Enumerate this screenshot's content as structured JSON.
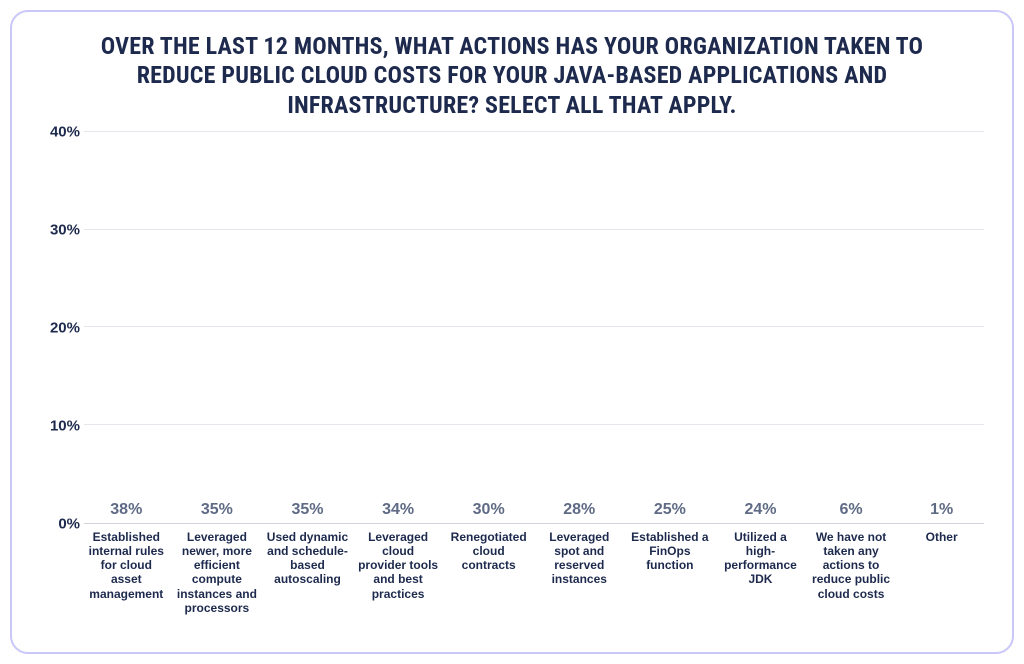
{
  "chart": {
    "type": "bar",
    "title": "OVER THE LAST 12 MONTHS, WHAT ACTIONS HAS YOUR ORGANIZATION TAKEN TO REDUCE PUBLIC CLOUD COSTS FOR YOUR JAVA-BASED APPLICATIONS AND INFRASTRUCTURE? SELECT ALL THAT APPLY.",
    "title_fontsize": 24,
    "title_color": "#1d2a4d",
    "background_color": "#ffffff",
    "border_color": "#c9c7f5",
    "border_radius": 18,
    "y_axis": {
      "min": 0,
      "max": 40,
      "tick_step": 10,
      "ticks": [
        "0%",
        "10%",
        "20%",
        "30%",
        "40%"
      ],
      "label_fontsize": 15,
      "label_color": "#1d2a4d"
    },
    "grid_color": "#e6e6ec",
    "axis_line_color": "#d3d3dc",
    "bar_color": "#5a5fd6",
    "bar_width": 0.88,
    "value_label_color": "#5f6b85",
    "value_label_fontsize": 16,
    "x_label_color": "#1d2a4d",
    "x_label_fontsize": 12,
    "categories": [
      "Established internal rules for cloud asset management",
      "Leveraged newer, more efficient compute instances and processors",
      "Used dynamic and schedule-based autoscaling",
      "Leveraged cloud provider tools and best practices",
      "Renegotiated cloud contracts",
      "Leveraged spot and reserved instances",
      "Established a FinOps function",
      "Utilized a high-performance JDK",
      "We have not taken any actions to reduce public cloud costs",
      "Other"
    ],
    "values": [
      38,
      35,
      35,
      34,
      30,
      28,
      25,
      24,
      6,
      1
    ],
    "value_labels": [
      "38%",
      "35%",
      "35%",
      "34%",
      "30%",
      "28%",
      "25%",
      "24%",
      "6%",
      "1%"
    ]
  }
}
